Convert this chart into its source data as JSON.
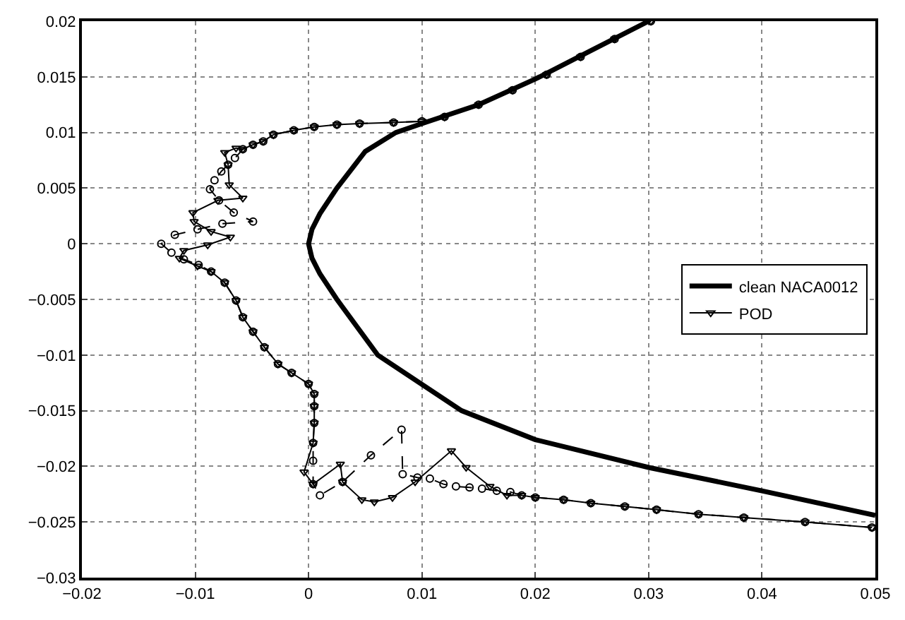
{
  "chart_data": {
    "type": "line",
    "xlim": [
      -0.02,
      0.05
    ],
    "ylim": [
      -0.03,
      0.02
    ],
    "xticks": [
      -0.02,
      -0.01,
      0,
      0.01,
      0.02,
      0.03,
      0.04,
      0.05
    ],
    "yticks": [
      -0.03,
      -0.025,
      -0.02,
      -0.015,
      -0.01,
      -0.005,
      0,
      0.005,
      0.01,
      0.015,
      0.02
    ],
    "grid": true,
    "legend": "right",
    "series": [
      {
        "name": "clean NACA0012",
        "color": "#000000",
        "marker": "none",
        "line_style": "solid",
        "x": [
          0.03,
          0.025,
          0.02,
          0.015,
          0.01,
          0.0077,
          0.005,
          0.0025,
          0.001,
          0.0003,
          0,
          0.0003,
          0.001,
          0.0025,
          0.0061,
          0.0135,
          0.02,
          0.03,
          0.04,
          0.05
        ],
        "values": [
          0.02,
          0.0174,
          0.0148,
          0.0125,
          0.0108,
          0.01,
          0.0083,
          0.005,
          0.0027,
          0.0013,
          0,
          -0.0013,
          -0.0027,
          -0.005,
          -0.01,
          -0.015,
          -0.0176,
          -0.0201,
          -0.0222,
          -0.0244
        ]
      },
      {
        "color": "#000000",
        "marker": "circle",
        "line_style": "dashed",
        "x": [
          0.0302,
          0.027,
          0.024,
          0.021,
          0.018,
          0.015,
          0.012,
          0.01,
          0.0075,
          0.0045,
          0.0025,
          0.0005,
          -0.0013,
          -0.0031,
          -0.004,
          -0.0049,
          -0.0058,
          -0.0065,
          -0.0071,
          -0.0077,
          -0.0083,
          -0.0087,
          -0.0079,
          -0.0066,
          -0.0049,
          -0.0076,
          -0.0098,
          -0.0118,
          -0.013,
          -0.0121,
          -0.011,
          -0.0097,
          -0.0086,
          -0.0074,
          -0.0064,
          -0.0058,
          -0.0049,
          -0.0039,
          -0.0027,
          -0.0015,
          0,
          0.0005,
          0.0005,
          0.0005,
          0.0004,
          0.0004,
          0.0004,
          0.001,
          0.003,
          0.0055,
          0.0082,
          0.0083,
          0.0096,
          0.0107,
          0.0119,
          0.013,
          0.0142,
          0.0153,
          0.0166,
          0.0178,
          0.0188,
          0.02,
          0.0225,
          0.0249,
          0.0279,
          0.0307,
          0.0344,
          0.0384,
          0.0438,
          0.0497
        ],
        "values": [
          0.02,
          0.0184,
          0.0168,
          0.0152,
          0.0138,
          0.0125,
          0.0114,
          0.011,
          0.0109,
          0.0108,
          0.0107,
          0.0105,
          0.0102,
          0.0098,
          0.0092,
          0.0089,
          0.0085,
          0.0077,
          0.0071,
          0.0065,
          0.0057,
          0.0049,
          0.0039,
          0.0028,
          0.002,
          0.0018,
          0.0013,
          0.0008,
          0,
          -0.0008,
          -0.0014,
          -0.0019,
          -0.0025,
          -0.0035,
          -0.0051,
          -0.0066,
          -0.0079,
          -0.0093,
          -0.0108,
          -0.0116,
          -0.0126,
          -0.0135,
          -0.0146,
          -0.0161,
          -0.0179,
          -0.0195,
          -0.0216,
          -0.0226,
          -0.0214,
          -0.019,
          -0.0167,
          -0.0207,
          -0.021,
          -0.0211,
          -0.0216,
          -0.0218,
          -0.0219,
          -0.022,
          -0.0222,
          -0.0223,
          -0.0226,
          -0.0228,
          -0.023,
          -0.0233,
          -0.0236,
          -0.0239,
          -0.0243,
          -0.0246,
          -0.025,
          -0.0255
        ]
      },
      {
        "name": "POD",
        "color": "#000000",
        "marker": "triangle",
        "line_style": "solid",
        "x": [
          0.0302,
          0.027,
          0.024,
          0.021,
          0.018,
          0.015,
          0.012,
          0.01,
          0.0075,
          0.0045,
          0.0025,
          0.0005,
          -0.0013,
          -0.0031,
          -0.004,
          -0.0049,
          -0.0058,
          -0.0064,
          -0.0074,
          -0.0071,
          -0.007,
          -0.0058,
          -0.008,
          -0.0102,
          -0.0101,
          -0.0086,
          -0.0069,
          -0.0089,
          -0.011,
          -0.0114,
          -0.0098,
          -0.0086,
          -0.0074,
          -0.0064,
          -0.0058,
          -0.0049,
          -0.0039,
          -0.0027,
          -0.0015,
          0,
          0.0005,
          0.0005,
          0.0005,
          0.0004,
          -0.0004,
          0.0004,
          0.0028,
          0.003,
          0.0047,
          0.0058,
          0.0074,
          0.0094,
          0.0126,
          0.0139,
          0.016,
          0.0175,
          0.0188,
          0.02,
          0.0225,
          0.0249,
          0.0279,
          0.0307,
          0.0344,
          0.0384,
          0.0438,
          0.0497
        ],
        "values": [
          0.02,
          0.0184,
          0.0168,
          0.0152,
          0.0138,
          0.0125,
          0.0114,
          0.011,
          0.0109,
          0.0108,
          0.0107,
          0.0105,
          0.0102,
          0.0098,
          0.0092,
          0.0089,
          0.0085,
          0.0086,
          0.0082,
          0.0071,
          0.0053,
          0.0041,
          0.0039,
          0.0028,
          0.002,
          0.0011,
          0.0006,
          -0.0001,
          -0.0006,
          -0.0013,
          -0.002,
          -0.0025,
          -0.0035,
          -0.0051,
          -0.0066,
          -0.0079,
          -0.0093,
          -0.0108,
          -0.0116,
          -0.0126,
          -0.0135,
          -0.0146,
          -0.0161,
          -0.0179,
          -0.0205,
          -0.0216,
          -0.0198,
          -0.0214,
          -0.023,
          -0.0232,
          -0.0228,
          -0.0214,
          -0.0186,
          -0.0201,
          -0.0218,
          -0.0226,
          -0.0226,
          -0.0228,
          -0.023,
          -0.0233,
          -0.0236,
          -0.0239,
          -0.0243,
          -0.0246,
          -0.025,
          -0.0255
        ]
      }
    ]
  }
}
